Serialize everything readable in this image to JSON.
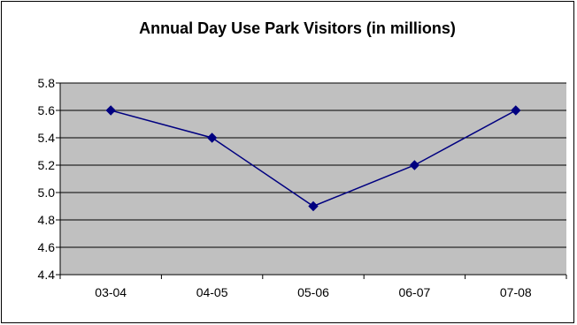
{
  "chart_data": {
    "type": "line",
    "title": "Annual Day Use Park Visitors (in millions)",
    "xlabel": "",
    "ylabel": "",
    "categories": [
      "03-04",
      "04-05",
      "05-06",
      "06-07",
      "07-08"
    ],
    "series": [
      {
        "values": [
          5.6,
          5.4,
          4.9,
          5.2,
          5.6
        ]
      }
    ],
    "ylim": [
      4.4,
      5.8
    ],
    "ytick_step": 0.2,
    "ytick_labels": [
      "4.4",
      "4.6",
      "4.8",
      "5.0",
      "5.2",
      "5.4",
      "5.6",
      "5.8"
    ],
    "grid": true,
    "legend": "none",
    "colors": {
      "plot_background": "#c0c0c0",
      "line": "#000080",
      "marker": "#000080",
      "gridline": "#000000"
    }
  }
}
